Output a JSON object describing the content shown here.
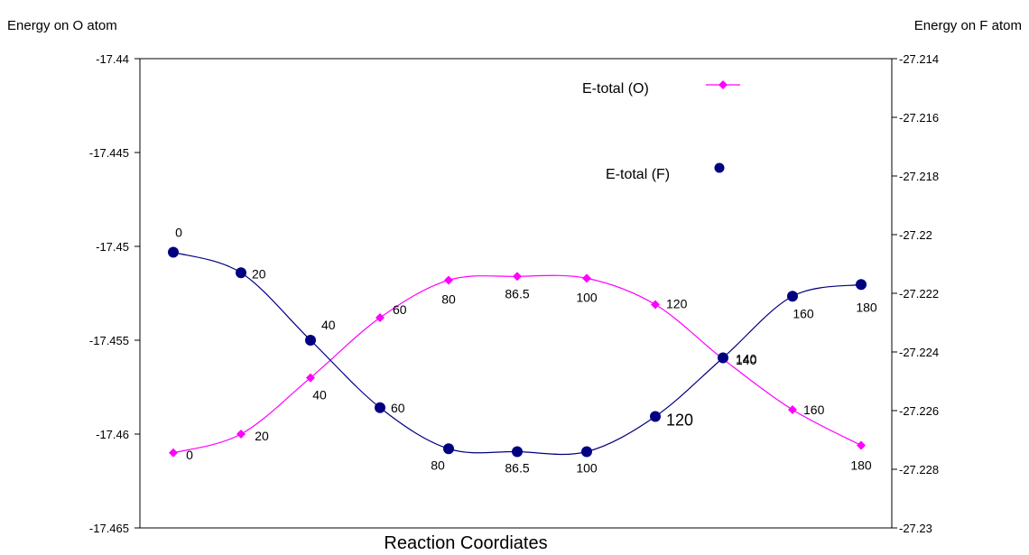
{
  "chart_data": {
    "type": "line",
    "xlabel_parts": [
      "Reaction",
      "Coordiates"
    ],
    "ylabel_left": "Energy on O atom",
    "ylabel_right": "Energy on F atom",
    "ylim_left": [
      -17.465,
      -17.44
    ],
    "yticks_left": [
      "-17.44",
      "-17.445",
      "-17.45",
      "-17.455",
      "-17.46",
      "-17.465"
    ],
    "ylim_right": [
      -27.23,
      -27.214
    ],
    "yticks_right": [
      "-27.214",
      "-27.216",
      "-27.218",
      "-27.22",
      "-27.222",
      "-27.224",
      "-27.226",
      "-27.228",
      "-27.23"
    ],
    "x": [
      0,
      20,
      40,
      60,
      80,
      86.5,
      100,
      120,
      140,
      160,
      180
    ],
    "series": [
      {
        "name": "E-total (O)",
        "axis": "left",
        "color": "#ff00ff",
        "marker": "diamond",
        "labels": [
          "0",
          "20",
          "40",
          "60",
          "80",
          "86.5",
          "100",
          "120",
          "140",
          "160",
          "180"
        ],
        "values": [
          -17.461,
          -17.46,
          -17.457,
          -17.4538,
          -17.4518,
          -17.4516,
          -17.4517,
          -17.4531,
          -17.456,
          -17.4587,
          -17.4606
        ]
      },
      {
        "name": "E-total (F)",
        "axis": "right",
        "color": "#000080",
        "marker": "circle",
        "labels": [
          "0",
          "20",
          "40",
          "60",
          "80",
          "86.5",
          "100",
          "120",
          "140",
          "160",
          "180"
        ],
        "values": [
          -27.2206,
          -27.2213,
          -27.2236,
          -27.2259,
          -27.2273,
          -27.2274,
          -27.2274,
          -27.2262,
          -27.2242,
          -27.2221,
          -27.2217
        ]
      }
    ]
  }
}
